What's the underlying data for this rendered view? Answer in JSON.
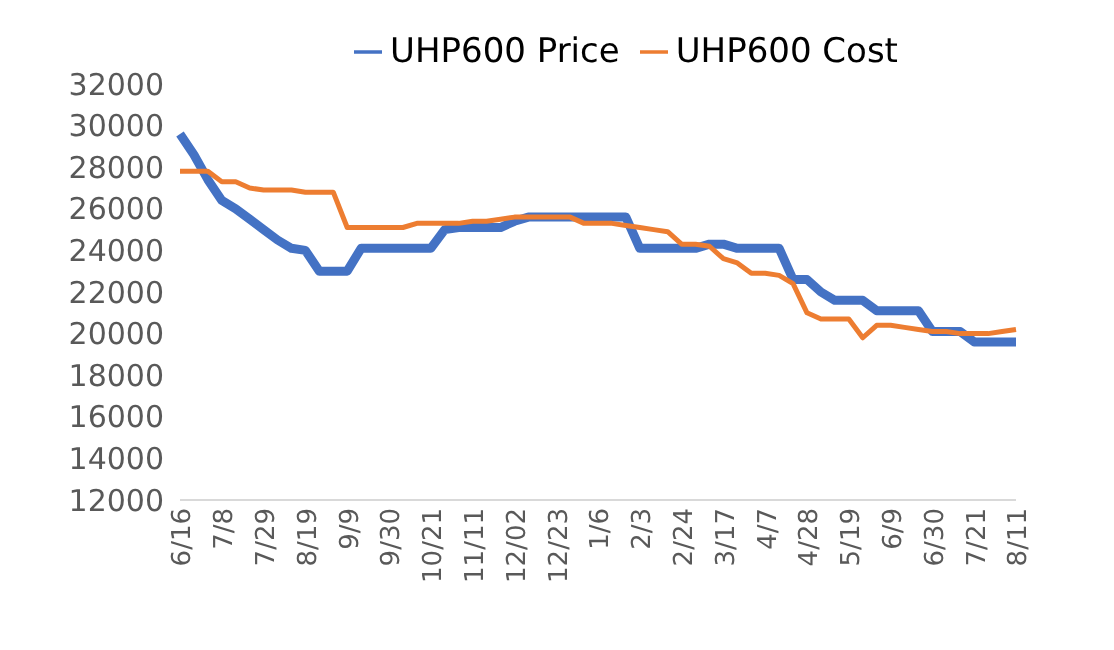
{
  "chart_data": {
    "type": "line",
    "categories": [
      "6/16",
      null,
      null,
      "7/8",
      null,
      null,
      "7/29",
      null,
      null,
      "8/19",
      null,
      null,
      "9/9",
      null,
      null,
      "9/30",
      null,
      null,
      "10/21",
      null,
      null,
      "11/11",
      null,
      null,
      "12/02",
      null,
      null,
      "12/23",
      null,
      null,
      "1/6",
      null,
      null,
      "2/3",
      null,
      null,
      "2/24",
      null,
      null,
      "3/17",
      null,
      null,
      "4/7",
      null,
      null,
      "4/28",
      null,
      null,
      "5/19",
      null,
      null,
      "6/9",
      null,
      null,
      "6/30",
      null,
      null,
      "7/21",
      null,
      null,
      "8/11"
    ],
    "series": [
      {
        "name": "UHP600 Price",
        "color": "#4472c4",
        "values": [
          29600,
          28600,
          27400,
          26400,
          26000,
          25500,
          25000,
          24500,
          24100,
          24000,
          23000,
          23000,
          23000,
          24100,
          24100,
          24100,
          24100,
          24100,
          24100,
          25000,
          25100,
          25100,
          25100,
          25100,
          25400,
          25600,
          25600,
          25600,
          25600,
          25600,
          25600,
          25600,
          25600,
          24100,
          24100,
          24100,
          24100,
          24100,
          24300,
          24300,
          24100,
          24100,
          24100,
          24100,
          22600,
          22600,
          22000,
          21600,
          21600,
          21600,
          21100,
          21100,
          21100,
          21100,
          20100,
          20100,
          20100,
          19600,
          19600,
          19600,
          19600
        ]
      },
      {
        "name": "UHP600 Cost",
        "color": "#ed7d31",
        "values": [
          27800,
          27800,
          27800,
          27300,
          27300,
          27000,
          26900,
          26900,
          26900,
          26800,
          26800,
          26800,
          25100,
          25100,
          25100,
          25100,
          25100,
          25300,
          25300,
          25300,
          25300,
          25400,
          25400,
          25500,
          25600,
          25600,
          25600,
          25600,
          25600,
          25300,
          25300,
          25300,
          25200,
          25100,
          25000,
          24900,
          24300,
          24300,
          24200,
          23600,
          23400,
          22900,
          22900,
          22800,
          22400,
          21000,
          20700,
          20700,
          20700,
          19800,
          20400,
          20400,
          20300,
          20200,
          20100,
          20100,
          20000,
          20000,
          20000,
          20100,
          20200
        ]
      }
    ],
    "ylim": [
      12000,
      32000
    ],
    "yticks": [
      12000,
      14000,
      16000,
      18000,
      20000,
      22000,
      24000,
      26000,
      28000,
      30000,
      32000
    ],
    "grid": false,
    "legend": "top",
    "marker": "none",
    "line_style": "solid"
  }
}
